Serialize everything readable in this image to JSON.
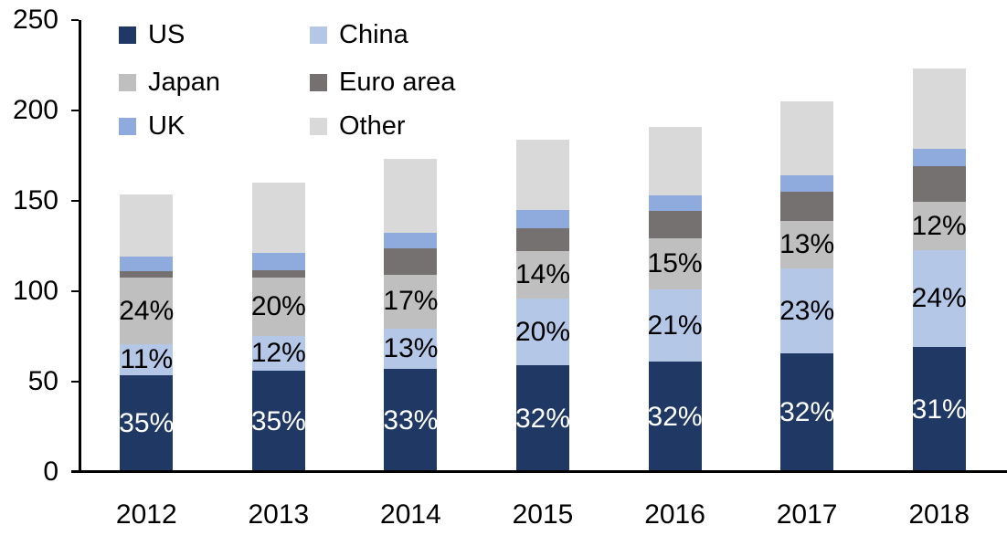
{
  "chart_data": {
    "type": "bar",
    "subtype": "stacked",
    "title": "",
    "xlabel": "",
    "ylabel": "",
    "categories": [
      "2012",
      "2013",
      "2014",
      "2015",
      "2016",
      "2017",
      "2018"
    ],
    "ylim": [
      0,
      250
    ],
    "yticks": [
      0,
      50,
      100,
      150,
      200,
      250
    ],
    "grid": false,
    "stack_order_bottom_to_top": [
      "US",
      "China",
      "Japan",
      "Euro area",
      "UK",
      "Other"
    ],
    "series": [
      {
        "name": "US",
        "color": "#1F3864",
        "values": [
          53.5,
          56,
          57,
          59,
          61,
          65.5,
          69
        ],
        "bar_labels": [
          "35%",
          "35%",
          "33%",
          "32%",
          "32%",
          "32%",
          "31%"
        ],
        "label_color": "#FFFFFF"
      },
      {
        "name": "China",
        "color": "#B4C7E7",
        "values": [
          17,
          19.5,
          22.5,
          37,
          40,
          47,
          53.5
        ],
        "bar_labels": [
          "11%",
          "12%",
          "13%",
          "20%",
          "21%",
          "23%",
          "24%"
        ],
        "label_color": "#000000"
      },
      {
        "name": "Japan",
        "color": "#BFBFBF",
        "values": [
          37,
          32,
          29.5,
          26,
          28.5,
          26.5,
          27
        ],
        "bar_labels": [
          "24%",
          "20%",
          "17%",
          "14%",
          "15%",
          "13%",
          "12%"
        ],
        "label_color": "#000000"
      },
      {
        "name": "Euro area",
        "color": "#767171",
        "values": [
          3.5,
          4,
          14.5,
          13,
          15,
          16,
          19.5
        ],
        "bar_labels": null,
        "label_color": null
      },
      {
        "name": "UK",
        "color": "#8FAADC",
        "values": [
          8,
          9.5,
          9,
          10,
          8.5,
          9,
          10
        ],
        "bar_labels": null,
        "label_color": null
      },
      {
        "name": "Other",
        "color": "#D9D9D9",
        "values": [
          34.5,
          39,
          40.5,
          39,
          38,
          41,
          44
        ],
        "bar_labels": null,
        "label_color": null
      }
    ],
    "totals": [
      153.5,
      160,
      173,
      184,
      191,
      205,
      223
    ],
    "legend": {
      "position": "top-left",
      "columns": 2,
      "items": [
        "US",
        "China",
        "Japan",
        "Euro area",
        "UK",
        "Other"
      ]
    }
  }
}
